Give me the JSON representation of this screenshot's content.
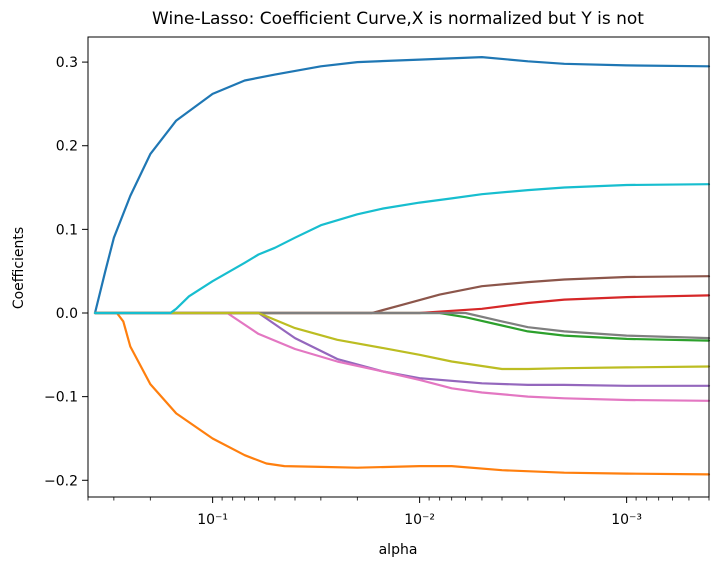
{
  "chart_data": {
    "type": "line",
    "title": "Wine-Lasso: Coefficient Curve,X is normalized but Y is not",
    "xlabel": "alpha",
    "ylabel": "Coefficients",
    "xscale": "log",
    "xaxis_reversed": true,
    "xlim": [
      0.4,
      0.0004
    ],
    "ylim": [
      -0.22,
      0.33
    ],
    "grid": false,
    "x_ticks": [
      {
        "value": 0.1,
        "label": "10⁻¹"
      },
      {
        "value": 0.01,
        "label": "10⁻²"
      },
      {
        "value": 0.001,
        "label": "10⁻³"
      }
    ],
    "y_ticks": [
      {
        "value": 0.3,
        "label": "0.3"
      },
      {
        "value": 0.2,
        "label": "0.2"
      },
      {
        "value": 0.1,
        "label": "0.1"
      },
      {
        "value": 0.0,
        "label": "0.0"
      },
      {
        "value": -0.1,
        "label": "−0.1"
      },
      {
        "value": -0.2,
        "label": "−0.2"
      }
    ],
    "series": [
      {
        "color": "#1f77b4",
        "points": [
          [
            0.37,
            0.0
          ],
          [
            0.33,
            0.05
          ],
          [
            0.3,
            0.09
          ],
          [
            0.25,
            0.14
          ],
          [
            0.2,
            0.19
          ],
          [
            0.15,
            0.23
          ],
          [
            0.1,
            0.262
          ],
          [
            0.07,
            0.278
          ],
          [
            0.05,
            0.285
          ],
          [
            0.03,
            0.295
          ],
          [
            0.02,
            0.3
          ],
          [
            0.01,
            0.303
          ],
          [
            0.005,
            0.306
          ],
          [
            0.003,
            0.301
          ],
          [
            0.002,
            0.298
          ],
          [
            0.001,
            0.296
          ],
          [
            0.0004,
            0.295
          ]
        ]
      },
      {
        "color": "#ff7f0e",
        "points": [
          [
            0.37,
            0.0
          ],
          [
            0.29,
            0.0
          ],
          [
            0.27,
            -0.01
          ],
          [
            0.25,
            -0.04
          ],
          [
            0.2,
            -0.085
          ],
          [
            0.15,
            -0.12
          ],
          [
            0.1,
            -0.15
          ],
          [
            0.07,
            -0.17
          ],
          [
            0.055,
            -0.18
          ],
          [
            0.045,
            -0.183
          ],
          [
            0.03,
            -0.184
          ],
          [
            0.02,
            -0.185
          ],
          [
            0.01,
            -0.183
          ],
          [
            0.007,
            -0.183
          ],
          [
            0.004,
            -0.188
          ],
          [
            0.002,
            -0.191
          ],
          [
            0.001,
            -0.192
          ],
          [
            0.0004,
            -0.193
          ]
        ]
      },
      {
        "color": "#2ca02c",
        "points": [
          [
            0.37,
            0.0
          ],
          [
            0.008,
            0.0
          ],
          [
            0.006,
            -0.005
          ],
          [
            0.004,
            -0.015
          ],
          [
            0.003,
            -0.022
          ],
          [
            0.002,
            -0.027
          ],
          [
            0.001,
            -0.031
          ],
          [
            0.0004,
            -0.033
          ]
        ]
      },
      {
        "color": "#d62728",
        "points": [
          [
            0.37,
            0.0
          ],
          [
            0.01,
            0.0
          ],
          [
            0.005,
            0.005
          ],
          [
            0.003,
            0.012
          ],
          [
            0.002,
            0.016
          ],
          [
            0.001,
            0.019
          ],
          [
            0.0004,
            0.021
          ]
        ]
      },
      {
        "color": "#9467bd",
        "points": [
          [
            0.37,
            0.0
          ],
          [
            0.06,
            0.0
          ],
          [
            0.04,
            -0.03
          ],
          [
            0.025,
            -0.055
          ],
          [
            0.015,
            -0.07
          ],
          [
            0.01,
            -0.078
          ],
          [
            0.005,
            -0.084
          ],
          [
            0.003,
            -0.086
          ],
          [
            0.002,
            -0.086
          ],
          [
            0.001,
            -0.087
          ],
          [
            0.0004,
            -0.087
          ]
        ]
      },
      {
        "color": "#8c564b",
        "points": [
          [
            0.37,
            0.0
          ],
          [
            0.017,
            0.0
          ],
          [
            0.012,
            0.01
          ],
          [
            0.008,
            0.022
          ],
          [
            0.005,
            0.032
          ],
          [
            0.003,
            0.037
          ],
          [
            0.002,
            0.04
          ],
          [
            0.001,
            0.043
          ],
          [
            0.0004,
            0.044
          ]
        ]
      },
      {
        "color": "#e377c2",
        "points": [
          [
            0.37,
            0.0
          ],
          [
            0.085,
            0.0
          ],
          [
            0.06,
            -0.025
          ],
          [
            0.04,
            -0.043
          ],
          [
            0.025,
            -0.058
          ],
          [
            0.015,
            -0.07
          ],
          [
            0.01,
            -0.08
          ],
          [
            0.007,
            -0.09
          ],
          [
            0.005,
            -0.095
          ],
          [
            0.003,
            -0.1
          ],
          [
            0.002,
            -0.102
          ],
          [
            0.001,
            -0.104
          ],
          [
            0.0004,
            -0.105
          ]
        ]
      },
      {
        "color": "#7f7f7f",
        "points": [
          [
            0.37,
            0.0
          ],
          [
            0.006,
            0.0
          ],
          [
            0.004,
            -0.01
          ],
          [
            0.003,
            -0.017
          ],
          [
            0.002,
            -0.022
          ],
          [
            0.001,
            -0.027
          ],
          [
            0.0004,
            -0.03
          ]
        ]
      },
      {
        "color": "#bcbd22",
        "points": [
          [
            0.37,
            0.0
          ],
          [
            0.06,
            0.0
          ],
          [
            0.04,
            -0.018
          ],
          [
            0.025,
            -0.032
          ],
          [
            0.015,
            -0.042
          ],
          [
            0.01,
            -0.05
          ],
          [
            0.007,
            -0.058
          ],
          [
            0.004,
            -0.067
          ],
          [
            0.003,
            -0.067
          ],
          [
            0.002,
            -0.066
          ],
          [
            0.001,
            -0.065
          ],
          [
            0.0004,
            -0.064
          ]
        ]
      },
      {
        "color": "#17becf",
        "points": [
          [
            0.37,
            0.0
          ],
          [
            0.16,
            0.0
          ],
          [
            0.15,
            0.005
          ],
          [
            0.13,
            0.02
          ],
          [
            0.1,
            0.038
          ],
          [
            0.07,
            0.06
          ],
          [
            0.06,
            0.07
          ],
          [
            0.05,
            0.078
          ],
          [
            0.04,
            0.09
          ],
          [
            0.03,
            0.105
          ],
          [
            0.02,
            0.118
          ],
          [
            0.015,
            0.125
          ],
          [
            0.01,
            0.132
          ],
          [
            0.007,
            0.137
          ],
          [
            0.005,
            0.142
          ],
          [
            0.003,
            0.147
          ],
          [
            0.002,
            0.15
          ],
          [
            0.001,
            0.153
          ],
          [
            0.0004,
            0.154
          ]
        ]
      }
    ]
  }
}
